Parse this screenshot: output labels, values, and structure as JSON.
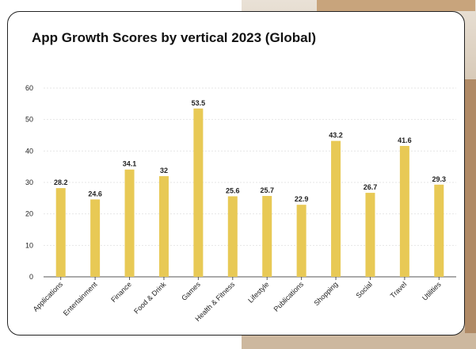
{
  "title": "App Growth Scores by vertical 2023 (Global)",
  "colors": {
    "bar": "#e8c955",
    "grid": "#e6e6e6",
    "axis": "#555555"
  },
  "chart_data": {
    "type": "bar",
    "title": "App Growth Scores by vertical 2023 (Global)",
    "xlabel": "",
    "ylabel": "",
    "ylim": [
      0,
      60
    ],
    "yticks": [
      0,
      10,
      20,
      30,
      40,
      50,
      60
    ],
    "grid": true,
    "categories": [
      "Applications",
      "Entertainment",
      "Finance",
      "Food & Drink",
      "Games",
      "Health & Fitness",
      "Lifestyle",
      "Publications",
      "Shopping",
      "Social",
      "Travel",
      "Utilities"
    ],
    "values": [
      28.2,
      24.6,
      34.1,
      32,
      53.5,
      25.6,
      25.7,
      22.9,
      43.2,
      26.7,
      41.6,
      29.3
    ],
    "value_labels": [
      "28.2",
      "24.6",
      "34.1",
      "32",
      "53.5",
      "25.6",
      "25.7",
      "22.9",
      "43.2",
      "26.7",
      "41.6",
      "29.3"
    ]
  }
}
